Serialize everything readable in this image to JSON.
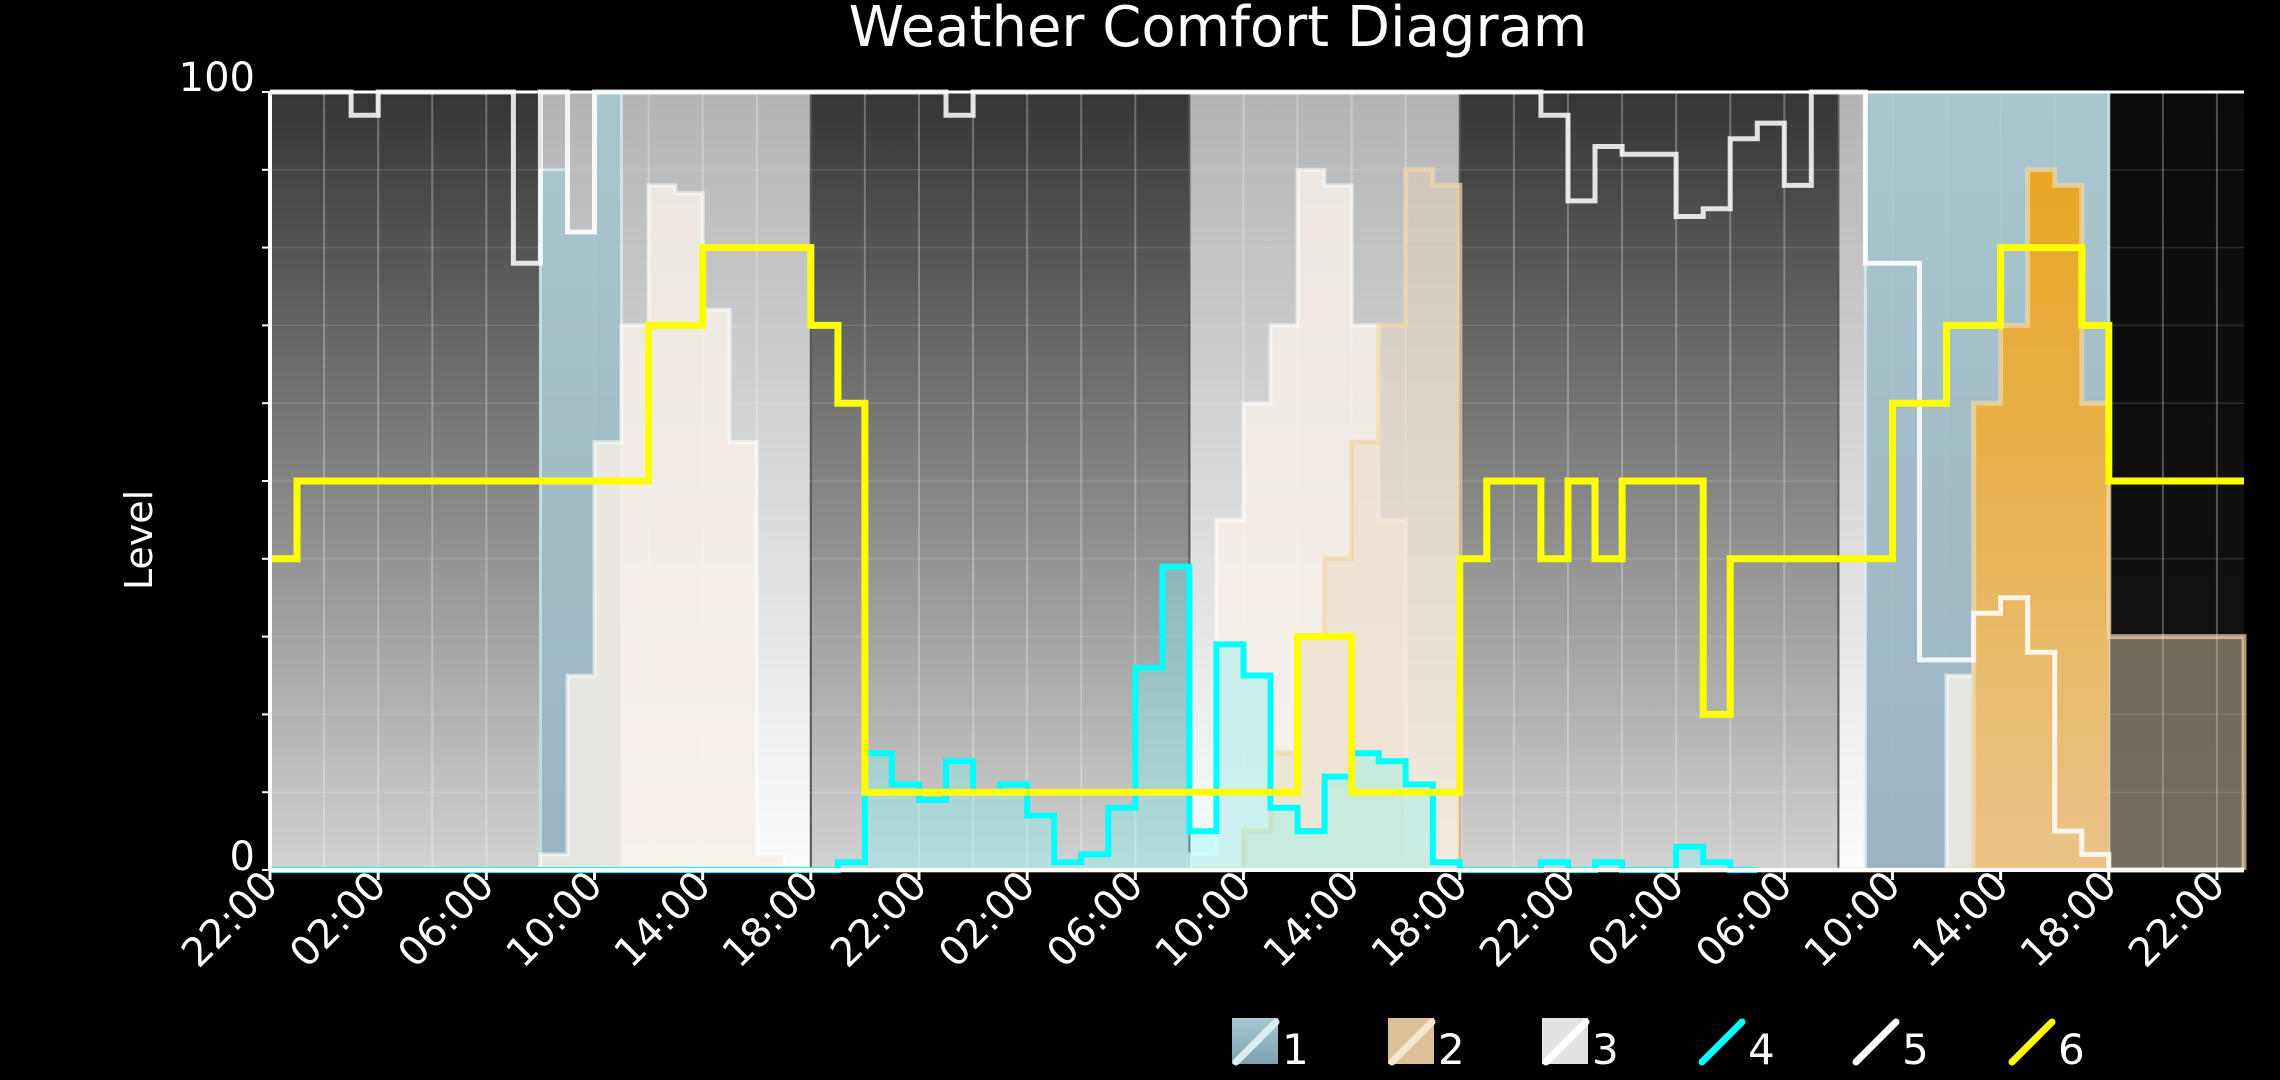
{
  "chart_data": {
    "type": "area",
    "title": "Weather Comfort Diagram",
    "ylabel": "Level",
    "xlabel": "",
    "ylim": [
      0,
      100
    ],
    "y_tick_labels": [
      "0",
      "100"
    ],
    "x_tick_labels": [
      "22:00",
      "02:00",
      "06:00",
      "10:00",
      "14:00",
      "18:00",
      "22:00",
      "02:00",
      "06:00",
      "10:00",
      "14:00",
      "18:00",
      "22:00",
      "02:00",
      "06:00",
      "10:00",
      "14:00",
      "18:00",
      "22:00"
    ],
    "x_range_hours": [
      0,
      146
    ],
    "day_periods": [
      {
        "start": 0,
        "end": 20,
        "type": "night"
      },
      {
        "start": 20,
        "end": 40,
        "type": "day"
      },
      {
        "start": 40,
        "end": 68,
        "type": "night"
      },
      {
        "start": 68,
        "end": 88,
        "type": "day"
      },
      {
        "start": 88,
        "end": 116,
        "type": "night"
      },
      {
        "start": 116,
        "end": 136,
        "type": "day"
      },
      {
        "start": 136,
        "end": 146,
        "type": "dark"
      }
    ],
    "legend": [
      "1",
      "2",
      "3",
      "4",
      "5",
      "6"
    ],
    "colors": {
      "s1": "#8fb6c6",
      "s2": "#e8ac38",
      "s3": "#f6efe6",
      "s4": "#00ffff",
      "s5": "#ffffff",
      "s6": "#ffff00"
    },
    "series": [
      {
        "name": "1",
        "step_x": [
          0,
          20,
          22,
          24,
          26,
          116,
          118,
          122,
          126,
          136,
          146
        ],
        "values": [
          0,
          90,
          82,
          100,
          0,
          0,
          100,
          100,
          100,
          0,
          0
        ]
      },
      {
        "name": "2",
        "step_x": [
          0,
          72,
          74,
          76,
          78,
          80,
          82,
          84,
          86,
          88,
          124,
          126,
          128,
          130,
          132,
          134,
          136,
          146
        ],
        "values": [
          0,
          5,
          15,
          30,
          40,
          55,
          70,
          90,
          88,
          0,
          0,
          60,
          70,
          90,
          88,
          60,
          30,
          0
        ]
      },
      {
        "name": "3",
        "step_x": [
          0,
          20,
          22,
          24,
          26,
          28,
          30,
          32,
          34,
          36,
          38,
          40,
          68,
          70,
          72,
          74,
          76,
          78,
          80,
          82,
          84,
          86,
          88,
          116,
          124,
          126,
          128,
          130,
          132,
          134,
          136,
          146
        ],
        "values": [
          0,
          2,
          25,
          55,
          70,
          88,
          87,
          72,
          55,
          2,
          0,
          0,
          2,
          45,
          60,
          70,
          90,
          88,
          70,
          45,
          2,
          0,
          0,
          0,
          25,
          32,
          35,
          28,
          8,
          2,
          0,
          0
        ]
      },
      {
        "name": "4",
        "step_x": [
          0,
          42,
          44,
          46,
          48,
          50,
          52,
          54,
          56,
          58,
          60,
          62,
          64,
          66,
          68,
          70,
          72,
          74,
          76,
          78,
          80,
          82,
          84,
          86,
          88,
          94,
          96,
          98,
          100,
          104,
          106,
          108
        ],
        "values": [
          0,
          1,
          15,
          11,
          9,
          14,
          10,
          11,
          7,
          1,
          2,
          8,
          26,
          39,
          5,
          29,
          25,
          8,
          5,
          12,
          15,
          14,
          11,
          1,
          0,
          1,
          0,
          1,
          0,
          3,
          1,
          0
        ],
        "x_max": 110
      },
      {
        "name": "5",
        "step_x": [
          0,
          6,
          8,
          18,
          20,
          22,
          24,
          50,
          52,
          94,
          96,
          98,
          100,
          104,
          106,
          108,
          110,
          112,
          114,
          116,
          118,
          122,
          126,
          128,
          130,
          132,
          134,
          136
        ],
        "values": [
          100,
          97,
          100,
          78,
          100,
          82,
          100,
          97,
          100,
          97,
          86,
          93,
          92,
          84,
          85,
          94,
          96,
          88,
          100,
          100,
          78,
          27,
          33,
          35,
          28,
          5,
          2,
          0
        ]
      },
      {
        "name": "6",
        "step_x": [
          0,
          2,
          24,
          28,
          32,
          36,
          40,
          42,
          44,
          66,
          72,
          76,
          80,
          82,
          84,
          88,
          90,
          92,
          94,
          96,
          98,
          100,
          106,
          108,
          120,
          124,
          128,
          134,
          136
        ],
        "values": [
          40,
          50,
          50,
          70,
          80,
          80,
          70,
          60,
          10,
          10,
          10,
          30,
          10,
          10,
          10,
          40,
          50,
          50,
          40,
          50,
          40,
          50,
          20,
          40,
          60,
          70,
          80,
          70,
          50
        ]
      }
    ]
  }
}
